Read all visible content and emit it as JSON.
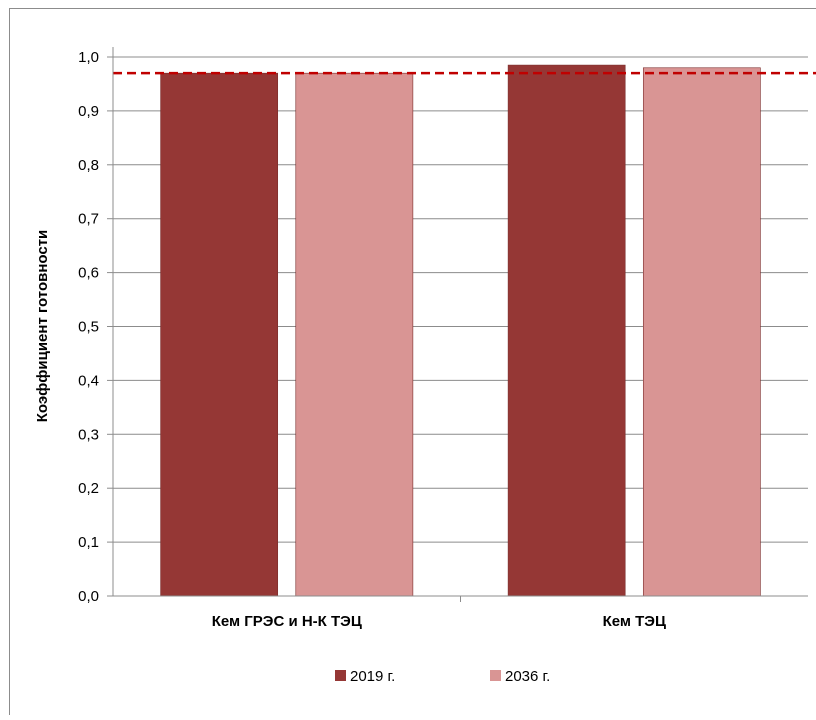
{
  "chart_data": {
    "type": "bar",
    "categories": [
      "Кем ГРЭС и Н-К ТЭЦ",
      "Кем ТЭЦ"
    ],
    "series": [
      {
        "name": "2019 г.",
        "values": [
          0.97,
          0.985
        ],
        "color": "#953735"
      },
      {
        "name": "2036 г.",
        "values": [
          0.97,
          0.98
        ],
        "color": "#D99594"
      }
    ],
    "title": "",
    "xlabel": "",
    "ylabel": "Коэффициент готовности",
    "ylim": [
      0,
      1.0
    ],
    "yticks": [
      "0,0",
      "0,1",
      "0,2",
      "0,3",
      "0,4",
      "0,5",
      "0,6",
      "0,7",
      "0,8",
      "0,9",
      "1,0"
    ],
    "reference_line": {
      "value": 0.97,
      "style": "dashed",
      "color": "#C00000"
    },
    "grid": true,
    "legend": "bottom"
  }
}
